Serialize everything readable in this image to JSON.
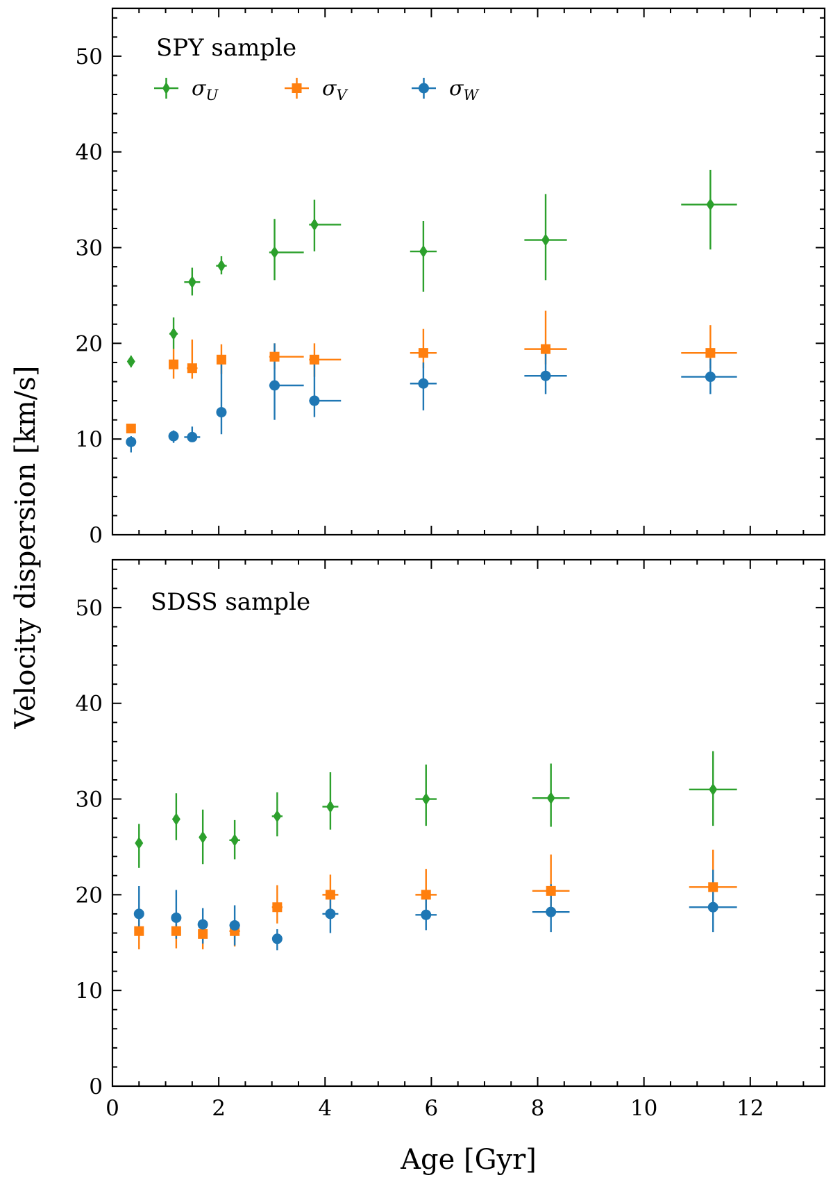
{
  "figure": {
    "ylabel": "Velocity dispersion [km/s]",
    "xlabel": "Age [Gyr]"
  },
  "legend": {
    "items": [
      {
        "label": "σU",
        "base": "σ",
        "sub": "U",
        "marker": "diamond",
        "color": "#2ca02c"
      },
      {
        "label": "σV",
        "base": "σ",
        "sub": "V",
        "marker": "square",
        "color": "#ff7f0e"
      },
      {
        "label": "σW",
        "base": "σ",
        "sub": "W",
        "marker": "circle",
        "color": "#1f77b4"
      }
    ]
  },
  "chart_data": [
    {
      "type": "scatter",
      "title": "SPY sample",
      "xlabel": "Age [Gyr]",
      "ylabel": "Velocity dispersion [km/s]",
      "xlim": [
        0,
        13.4
      ],
      "ylim": [
        0,
        55
      ],
      "xticks": [
        0,
        2,
        4,
        6,
        8,
        10,
        12
      ],
      "yticks": [
        0,
        10,
        20,
        30,
        40,
        50
      ],
      "grid": false,
      "legend": "upper-left",
      "series": [
        {
          "name": "σU",
          "marker": "diamond",
          "color": "#2ca02c",
          "points": [
            {
              "x": 0.35,
              "y": 18.1,
              "xerr": [
                0.05,
                0.05
              ],
              "yerr": [
                0.6,
                0.6
              ]
            },
            {
              "x": 1.15,
              "y": 21.0,
              "xerr": [
                0.08,
                0.08
              ],
              "yerr": [
                1.6,
                1.7
              ]
            },
            {
              "x": 1.5,
              "y": 26.4,
              "xerr": [
                0.15,
                0.15
              ],
              "yerr": [
                1.4,
                1.5
              ]
            },
            {
              "x": 2.05,
              "y": 28.1,
              "xerr": [
                0.1,
                0.1
              ],
              "yerr": [
                0.9,
                1.0
              ]
            },
            {
              "x": 3.05,
              "y": 29.5,
              "xerr": [
                0.1,
                0.55
              ],
              "yerr": [
                2.9,
                3.5
              ]
            },
            {
              "x": 3.8,
              "y": 32.4,
              "xerr": [
                0.1,
                0.5
              ],
              "yerr": [
                2.8,
                2.6
              ]
            },
            {
              "x": 5.85,
              "y": 29.6,
              "xerr": [
                0.25,
                0.25
              ],
              "yerr": [
                4.2,
                3.2
              ]
            },
            {
              "x": 8.15,
              "y": 30.8,
              "xerr": [
                0.4,
                0.4
              ],
              "yerr": [
                4.2,
                4.8
              ]
            },
            {
              "x": 11.25,
              "y": 34.5,
              "xerr": [
                0.55,
                0.5
              ],
              "yerr": [
                4.7,
                3.6
              ]
            }
          ]
        },
        {
          "name": "σV",
          "marker": "square",
          "color": "#ff7f0e",
          "points": [
            {
              "x": 0.35,
              "y": 11.1,
              "xerr": [
                0.05,
                0.05
              ],
              "yerr": [
                0.4,
                0.4
              ]
            },
            {
              "x": 1.15,
              "y": 17.8,
              "xerr": [
                0.05,
                0.05
              ],
              "yerr": [
                1.5,
                1.6
              ]
            },
            {
              "x": 1.5,
              "y": 17.4,
              "xerr": [
                0.1,
                0.1
              ],
              "yerr": [
                1.1,
                3.0
              ]
            },
            {
              "x": 2.05,
              "y": 18.3,
              "xerr": [
                0.08,
                0.08
              ],
              "yerr": [
                1.5,
                1.6
              ]
            },
            {
              "x": 3.05,
              "y": 18.6,
              "xerr": [
                0.1,
                0.55
              ],
              "yerr": [
                1.3,
                1.4
              ]
            },
            {
              "x": 3.8,
              "y": 18.3,
              "xerr": [
                0.1,
                0.5
              ],
              "yerr": [
                1.8,
                1.7
              ]
            },
            {
              "x": 5.85,
              "y": 19.0,
              "xerr": [
                0.25,
                0.25
              ],
              "yerr": [
                1.6,
                2.5
              ]
            },
            {
              "x": 8.15,
              "y": 19.4,
              "xerr": [
                0.4,
                0.4
              ],
              "yerr": [
                1.6,
                4.0
              ]
            },
            {
              "x": 11.25,
              "y": 19.0,
              "xerr": [
                0.55,
                0.5
              ],
              "yerr": [
                1.6,
                2.9
              ]
            }
          ]
        },
        {
          "name": "σW",
          "marker": "circle",
          "color": "#1f77b4",
          "points": [
            {
              "x": 0.35,
              "y": 9.7,
              "xerr": [
                0.05,
                0.05
              ],
              "yerr": [
                1.1,
                0.6
              ]
            },
            {
              "x": 1.15,
              "y": 10.3,
              "xerr": [
                0.05,
                0.05
              ],
              "yerr": [
                0.7,
                0.6
              ]
            },
            {
              "x": 1.5,
              "y": 10.2,
              "xerr": [
                0.15,
                0.15
              ],
              "yerr": [
                0.5,
                1.1
              ]
            },
            {
              "x": 2.05,
              "y": 12.8,
              "xerr": [
                0.05,
                0.05
              ],
              "yerr": [
                2.3,
                5.3
              ]
            },
            {
              "x": 3.05,
              "y": 15.6,
              "xerr": [
                0.1,
                0.55
              ],
              "yerr": [
                3.6,
                4.4
              ]
            },
            {
              "x": 3.8,
              "y": 14.0,
              "xerr": [
                0.1,
                0.5
              ],
              "yerr": [
                1.7,
                4.0
              ]
            },
            {
              "x": 5.85,
              "y": 15.8,
              "xerr": [
                0.25,
                0.25
              ],
              "yerr": [
                2.8,
                2.2
              ]
            },
            {
              "x": 8.15,
              "y": 16.6,
              "xerr": [
                0.4,
                0.4
              ],
              "yerr": [
                1.9,
                2.3
              ]
            },
            {
              "x": 11.25,
              "y": 16.5,
              "xerr": [
                0.55,
                0.5
              ],
              "yerr": [
                1.8,
                1.9
              ]
            }
          ]
        }
      ]
    },
    {
      "type": "scatter",
      "title": "SDSS sample",
      "xlabel": "Age [Gyr]",
      "ylabel": "Velocity dispersion [km/s]",
      "xlim": [
        0,
        13.4
      ],
      "ylim": [
        0,
        55
      ],
      "xticks": [
        0,
        2,
        4,
        6,
        8,
        10,
        12
      ],
      "yticks": [
        0,
        10,
        20,
        30,
        40,
        50
      ],
      "grid": false,
      "legend": "none",
      "series": [
        {
          "name": "σU",
          "marker": "diamond",
          "color": "#2ca02c",
          "points": [
            {
              "x": 0.5,
              "y": 25.4,
              "xerr": [
                0.05,
                0.05
              ],
              "yerr": [
                2.6,
                2.0
              ]
            },
            {
              "x": 1.2,
              "y": 27.9,
              "xerr": [
                0.05,
                0.05
              ],
              "yerr": [
                2.2,
                2.7
              ]
            },
            {
              "x": 1.7,
              "y": 26.0,
              "xerr": [
                0.05,
                0.05
              ],
              "yerr": [
                2.8,
                2.9
              ]
            },
            {
              "x": 2.3,
              "y": 25.7,
              "xerr": [
                0.1,
                0.1
              ],
              "yerr": [
                2.0,
                2.1
              ]
            },
            {
              "x": 3.1,
              "y": 28.2,
              "xerr": [
                0.1,
                0.1
              ],
              "yerr": [
                2.1,
                2.5
              ]
            },
            {
              "x": 4.1,
              "y": 29.2,
              "xerr": [
                0.15,
                0.15
              ],
              "yerr": [
                2.4,
                3.6
              ]
            },
            {
              "x": 5.9,
              "y": 30.0,
              "xerr": [
                0.2,
                0.2
              ],
              "yerr": [
                2.8,
                3.6
              ]
            },
            {
              "x": 8.25,
              "y": 30.1,
              "xerr": [
                0.35,
                0.35
              ],
              "yerr": [
                3.0,
                3.6
              ]
            },
            {
              "x": 11.3,
              "y": 31.0,
              "xerr": [
                0.45,
                0.45
              ],
              "yerr": [
                3.8,
                4.0
              ]
            }
          ]
        },
        {
          "name": "σV",
          "marker": "square",
          "color": "#ff7f0e",
          "points": [
            {
              "x": 0.5,
              "y": 16.2,
              "xerr": [
                0.05,
                0.05
              ],
              "yerr": [
                1.9,
                1.2
              ]
            },
            {
              "x": 1.2,
              "y": 16.2,
              "xerr": [
                0.05,
                0.05
              ],
              "yerr": [
                1.8,
                1.0
              ]
            },
            {
              "x": 1.7,
              "y": 15.9,
              "xerr": [
                0.05,
                0.05
              ],
              "yerr": [
                1.6,
                1.1
              ]
            },
            {
              "x": 2.3,
              "y": 16.2,
              "xerr": [
                0.1,
                0.1
              ],
              "yerr": [
                1.6,
                1.0
              ]
            },
            {
              "x": 3.1,
              "y": 18.7,
              "xerr": [
                0.1,
                0.1
              ],
              "yerr": [
                1.7,
                2.3
              ]
            },
            {
              "x": 4.1,
              "y": 20.0,
              "xerr": [
                0.15,
                0.15
              ],
              "yerr": [
                1.4,
                2.1
              ]
            },
            {
              "x": 5.9,
              "y": 20.0,
              "xerr": [
                0.2,
                0.2
              ],
              "yerr": [
                1.4,
                2.7
              ]
            },
            {
              "x": 8.25,
              "y": 20.4,
              "xerr": [
                0.35,
                0.35
              ],
              "yerr": [
                1.6,
                3.8
              ]
            },
            {
              "x": 11.3,
              "y": 20.8,
              "xerr": [
                0.45,
                0.45
              ],
              "yerr": [
                1.5,
                3.9
              ]
            }
          ]
        },
        {
          "name": "σW",
          "marker": "circle",
          "color": "#1f77b4",
          "points": [
            {
              "x": 0.5,
              "y": 18.0,
              "xerr": [
                0.05,
                0.05
              ],
              "yerr": [
                2.1,
                2.9
              ]
            },
            {
              "x": 1.2,
              "y": 17.6,
              "xerr": [
                0.05,
                0.05
              ],
              "yerr": [
                2.2,
                2.9
              ]
            },
            {
              "x": 1.7,
              "y": 16.9,
              "xerr": [
                0.05,
                0.05
              ],
              "yerr": [
                2.0,
                1.7
              ]
            },
            {
              "x": 2.3,
              "y": 16.8,
              "xerr": [
                0.1,
                0.1
              ],
              "yerr": [
                2.1,
                2.1
              ]
            },
            {
              "x": 3.1,
              "y": 15.4,
              "xerr": [
                0.05,
                0.05
              ],
              "yerr": [
                1.2,
                1.0
              ]
            },
            {
              "x": 4.1,
              "y": 18.0,
              "xerr": [
                0.15,
                0.15
              ],
              "yerr": [
                2.0,
                2.1
              ]
            },
            {
              "x": 5.9,
              "y": 17.9,
              "xerr": [
                0.2,
                0.2
              ],
              "yerr": [
                1.6,
                2.2
              ]
            },
            {
              "x": 8.25,
              "y": 18.2,
              "xerr": [
                0.35,
                0.35
              ],
              "yerr": [
                2.1,
                2.9
              ]
            },
            {
              "x": 11.3,
              "y": 18.7,
              "xerr": [
                0.45,
                0.45
              ],
              "yerr": [
                2.6,
                3.9
              ]
            }
          ]
        }
      ]
    }
  ]
}
